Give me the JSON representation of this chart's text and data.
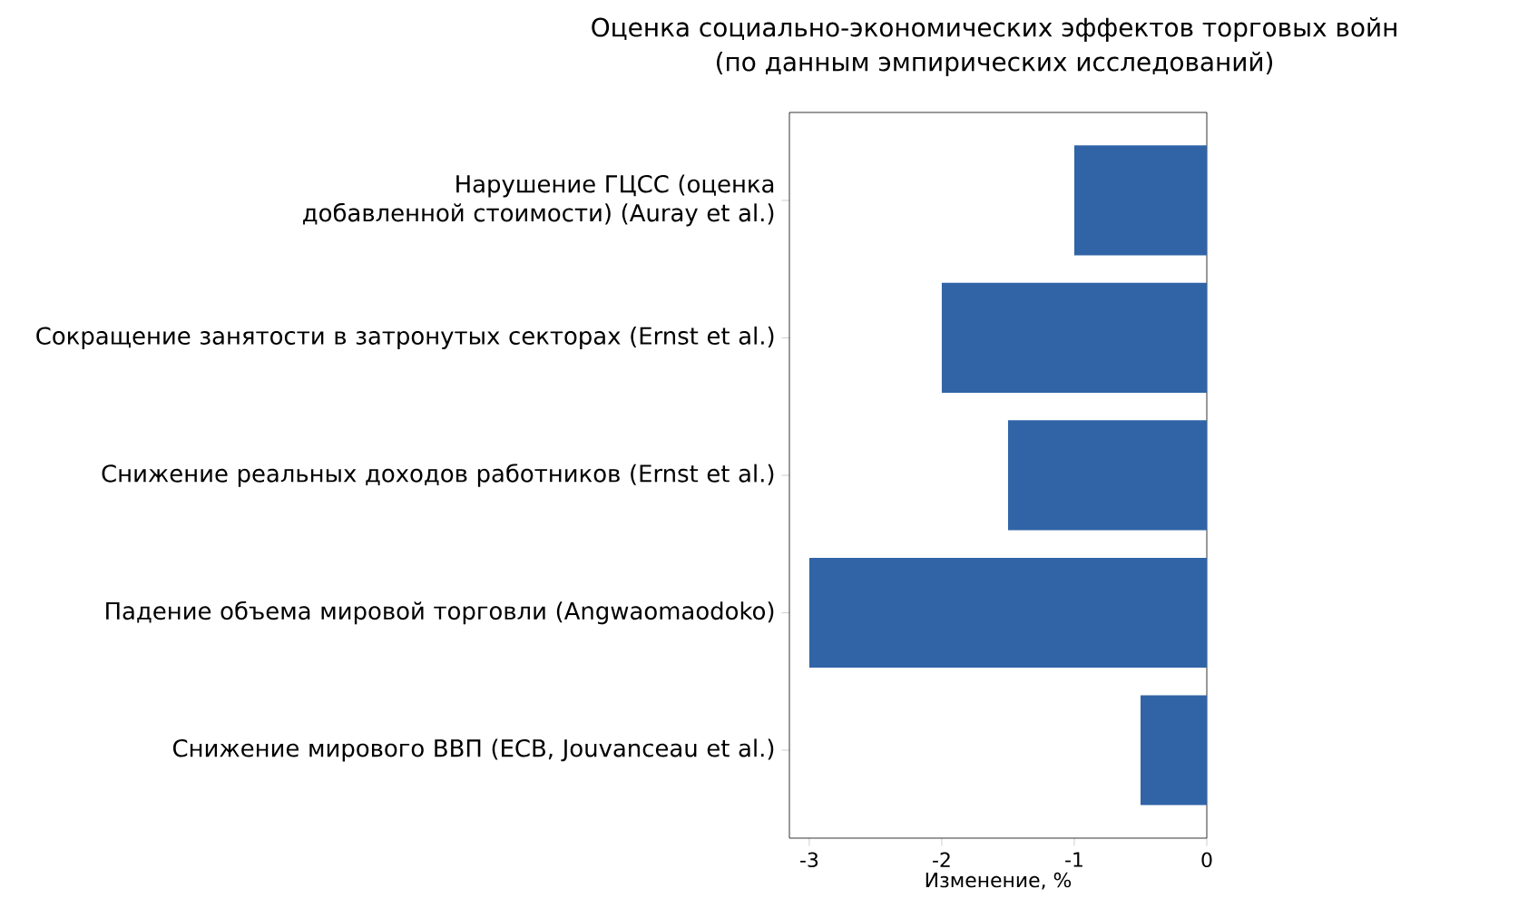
{
  "chart_data": {
    "type": "bar",
    "orientation": "horizontal",
    "title": "Оценка социально-экономических эффектов торговых войн",
    "subtitle": "(по данным эмпирических исследований)",
    "xlabel": "Изменение, %",
    "categories": [
      "Нарушение ГЦСС (оценка добавленной стоимости) (Auray et al.)",
      "Сокращение занятости в затронутых секторах (Ernst et al.)",
      "Снижение реальных доходов работников (Ernst et al.)",
      "Падение объема мировой торговли (Angwaomaodoko)",
      "Снижение мирового ВВП (ECB, Jouvanceau et al.)"
    ],
    "values": [
      -1,
      -2,
      -1.5,
      -3,
      -0.5
    ],
    "color": "#3164a6",
    "xlim": [
      -3.15,
      0
    ],
    "xticks": [
      -3,
      -2,
      -1,
      0
    ],
    "grid": false
  }
}
